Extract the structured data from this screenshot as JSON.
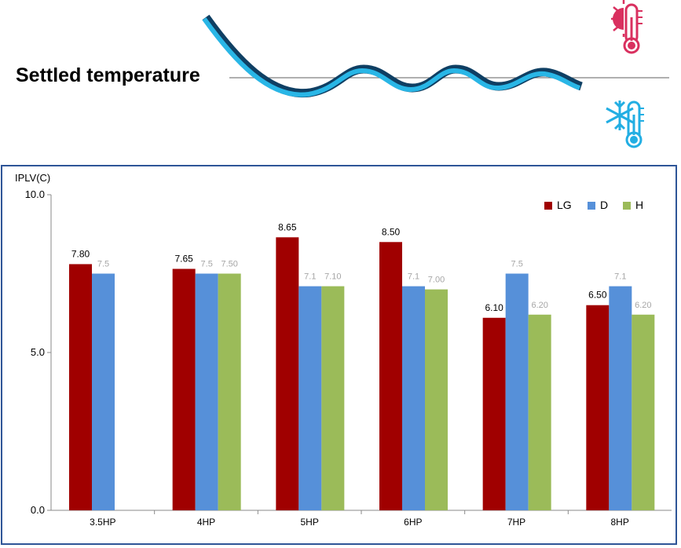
{
  "header": {
    "title": "Settled temperature",
    "icons": [
      "thermometer-hot-icon",
      "thermometer-cold-icon"
    ]
  },
  "colors": {
    "LG": "#a00000",
    "D": "#5690d9",
    "H": "#9bbb59",
    "wave": "#29b6e6",
    "hot": "#d9305f",
    "cold": "#22aee3",
    "frame": "#2e5597"
  },
  "chart_data": {
    "type": "bar",
    "ylabel": "IPLV(C)",
    "ylim": [
      0,
      10
    ],
    "yticks": [
      "0.0",
      "5.0",
      "10.0"
    ],
    "categories": [
      "3.5HP",
      "4HP",
      "5HP",
      "6HP",
      "7HP",
      "8HP"
    ],
    "legend_position": "top-right",
    "series": [
      {
        "name": "LG",
        "values": [
          7.8,
          7.65,
          8.65,
          8.5,
          6.1,
          6.5
        ],
        "labels": [
          "7.80",
          "7.65",
          "8.65",
          "8.50",
          "6.10",
          "6.50"
        ]
      },
      {
        "name": "D",
        "values": [
          7.5,
          7.5,
          7.1,
          7.1,
          7.5,
          7.1
        ],
        "labels": [
          "7.5",
          "7.5",
          "7.1",
          "7.1",
          "7.5",
          "7.1"
        ]
      },
      {
        "name": "H",
        "values": [
          null,
          7.5,
          7.1,
          7.0,
          6.2,
          6.2
        ],
        "labels": [
          "",
          "7.50",
          "7.10",
          "7.00",
          "6.20",
          "6.20"
        ]
      }
    ]
  }
}
